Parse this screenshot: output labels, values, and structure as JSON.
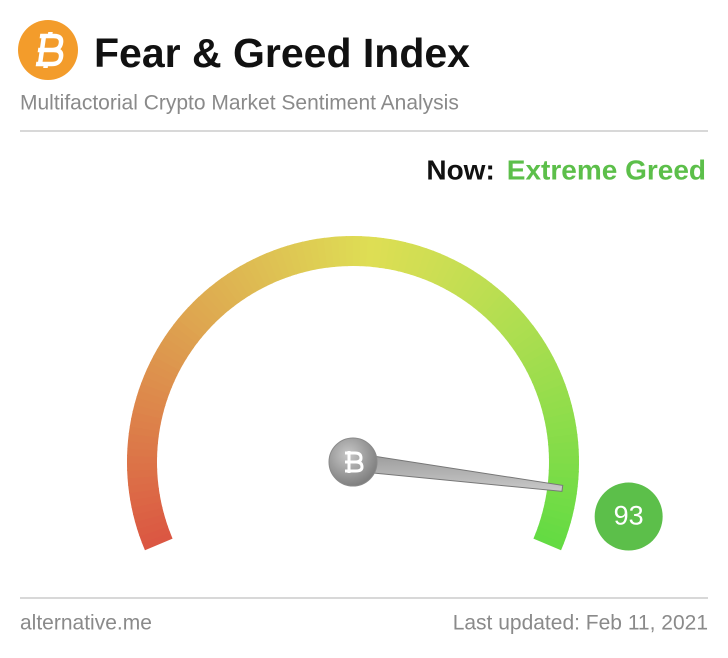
{
  "chart_data": {
    "type": "gauge",
    "title": "Fear & Greed Index",
    "subtitle": "Multifactorial Crypto Market Sentiment Analysis",
    "now_label": "Now:",
    "status": "Extreme Greed",
    "value": 93,
    "ylim": [
      0,
      100
    ],
    "color": "#5cbf4a",
    "source": "alternative.me",
    "updated": "Last updated: Feb 11, 2021"
  }
}
